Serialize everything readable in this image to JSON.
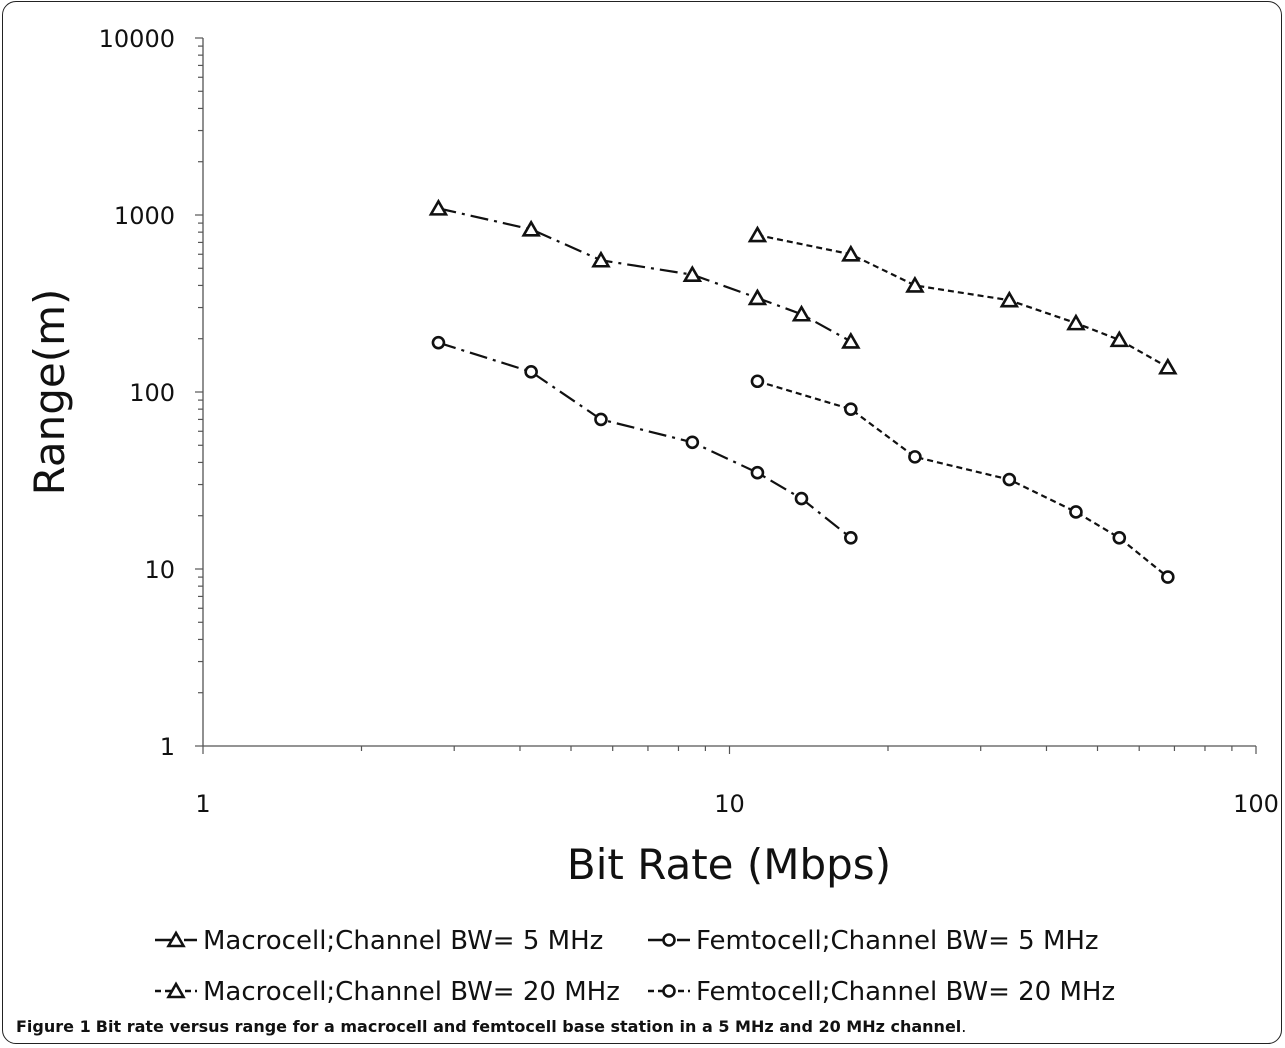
{
  "chart_data": {
    "type": "line",
    "xlabel": "Bit Rate (Mbps)",
    "ylabel": "Range(m)",
    "x_scale": "log",
    "y_scale": "log",
    "xlim": [
      1,
      100
    ],
    "ylim": [
      1,
      10000
    ],
    "x_ticks": [
      "1",
      "10",
      "100"
    ],
    "y_ticks": [
      "1",
      "10",
      "100",
      "1000",
      "10000"
    ],
    "grid": false,
    "legend_position": "bottom",
    "series": [
      {
        "name": "Macrocell;Channel BW= 5 MHz",
        "marker": "triangle",
        "line_style": "dash-dot",
        "x": [
          2.8,
          4.2,
          5.7,
          8.5,
          11.3,
          13.7,
          17.0
        ],
        "y": [
          1090,
          830,
          555,
          460,
          340,
          275,
          193
        ]
      },
      {
        "name": "Femtocell;Channel BW= 5 MHz",
        "marker": "circle",
        "line_style": "dash-dot",
        "x": [
          2.8,
          4.2,
          5.7,
          8.5,
          11.3,
          13.7,
          17.0
        ],
        "y": [
          190,
          130,
          70,
          52,
          35,
          25,
          15
        ]
      },
      {
        "name": "Macrocell;Channel BW= 20 MHz",
        "marker": "triangle",
        "line_style": "dashed",
        "x": [
          11.3,
          17.0,
          22.5,
          34.0,
          45.5,
          55.0,
          68.0
        ],
        "y": [
          770,
          600,
          400,
          330,
          245,
          197,
          138
        ]
      },
      {
        "name": "Femtocell;Channel BW= 20 MHz",
        "marker": "circle",
        "line_style": "dashed",
        "x": [
          11.3,
          17.0,
          22.5,
          34.0,
          45.5,
          55.0,
          68.0
        ],
        "y": [
          115,
          80,
          43,
          32,
          21,
          15,
          9
        ]
      }
    ]
  },
  "caption": {
    "label": "Figure 1",
    "text": "Bit rate versus range for a macrocell and femtocell base station in a 5 MHz and 20 MHz channel",
    "end": "."
  }
}
